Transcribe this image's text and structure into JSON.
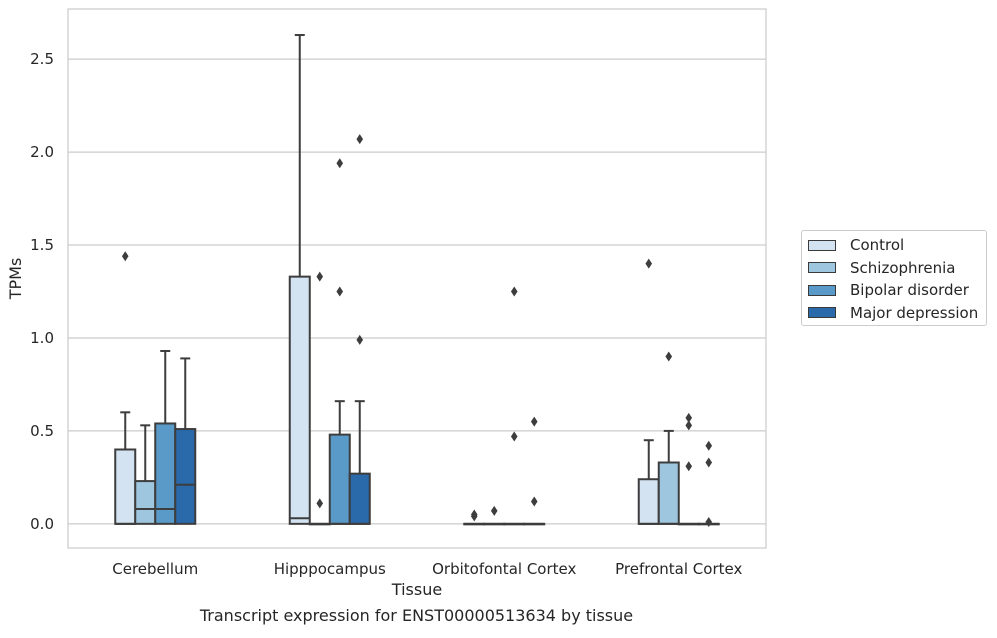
{
  "caption": "Transcript expression for ENST00000513634 by tissue",
  "chart_data": {
    "type": "boxplot",
    "xlabel": "Tissue",
    "ylabel": "TPMs",
    "ylim": [
      -0.13,
      2.77
    ],
    "yticks": [
      "0.0",
      "0.5",
      "1.0",
      "1.5",
      "2.0",
      "2.5"
    ],
    "grid": "horizontal",
    "legend_position": "right",
    "categories": [
      "Cerebellum",
      "Hipppocampus",
      "Orbitofontal Cortex",
      "Prefrontal Cortex"
    ],
    "series": [
      {
        "name": "Control",
        "color": "#d4e3f1",
        "boxes": [
          {
            "q1": 0.0,
            "median": 0.0,
            "q3": 0.4,
            "whisker_low": 0.0,
            "whisker_high": 0.6,
            "outliers": [
              1.44
            ]
          },
          {
            "q1": 0.0,
            "median": 0.03,
            "q3": 1.33,
            "whisker_low": 0.0,
            "whisker_high": 2.63,
            "outliers": []
          },
          {
            "q1": 0.0,
            "median": 0.0,
            "q3": 0.0,
            "whisker_low": 0.0,
            "whisker_high": 0.0,
            "outliers": [
              0.05,
              0.04
            ]
          },
          {
            "q1": 0.0,
            "median": 0.0,
            "q3": 0.24,
            "whisker_low": 0.0,
            "whisker_high": 0.45,
            "outliers": [
              1.4
            ]
          }
        ]
      },
      {
        "name": "Schizophrenia",
        "color": "#9fc6df",
        "boxes": [
          {
            "q1": 0.0,
            "median": 0.08,
            "q3": 0.23,
            "whisker_low": 0.0,
            "whisker_high": 0.53,
            "outliers": []
          },
          {
            "q1": 0.0,
            "median": 0.0,
            "q3": 0.0,
            "whisker_low": 0.0,
            "whisker_high": 0.0,
            "outliers": [
              1.33,
              0.11
            ]
          },
          {
            "q1": 0.0,
            "median": 0.0,
            "q3": 0.0,
            "whisker_low": 0.0,
            "whisker_high": 0.0,
            "outliers": [
              0.07
            ]
          },
          {
            "q1": 0.0,
            "median": 0.0,
            "q3": 0.33,
            "whisker_low": 0.0,
            "whisker_high": 0.5,
            "outliers": [
              0.9
            ]
          }
        ]
      },
      {
        "name": "Bipolar disorder",
        "color": "#5a9ac8",
        "boxes": [
          {
            "q1": 0.0,
            "median": 0.08,
            "q3": 0.54,
            "whisker_low": 0.0,
            "whisker_high": 0.93,
            "outliers": []
          },
          {
            "q1": 0.0,
            "median": 0.0,
            "q3": 0.48,
            "whisker_low": 0.0,
            "whisker_high": 0.66,
            "outliers": [
              1.94,
              1.25
            ]
          },
          {
            "q1": 0.0,
            "median": 0.0,
            "q3": 0.0,
            "whisker_low": 0.0,
            "whisker_high": 0.0,
            "outliers": [
              1.25,
              0.47
            ]
          },
          {
            "q1": 0.0,
            "median": 0.0,
            "q3": 0.0,
            "whisker_low": 0.0,
            "whisker_high": 0.0,
            "outliers": [
              0.57,
              0.53,
              0.31
            ]
          }
        ]
      },
      {
        "name": "Major depression",
        "color": "#2a6aab",
        "boxes": [
          {
            "q1": 0.0,
            "median": 0.21,
            "q3": 0.51,
            "whisker_low": 0.0,
            "whisker_high": 0.89,
            "outliers": []
          },
          {
            "q1": 0.0,
            "median": 0.0,
            "q3": 0.27,
            "whisker_low": 0.0,
            "whisker_high": 0.66,
            "outliers": [
              2.07,
              0.99
            ]
          },
          {
            "q1": 0.0,
            "median": 0.0,
            "q3": 0.0,
            "whisker_low": 0.0,
            "whisker_high": 0.0,
            "outliers": [
              0.55,
              0.12
            ]
          },
          {
            "q1": 0.0,
            "median": 0.0,
            "q3": 0.0,
            "whisker_low": 0.0,
            "whisker_high": 0.0,
            "outliers": [
              0.42,
              0.33,
              0.01
            ]
          }
        ]
      }
    ]
  }
}
